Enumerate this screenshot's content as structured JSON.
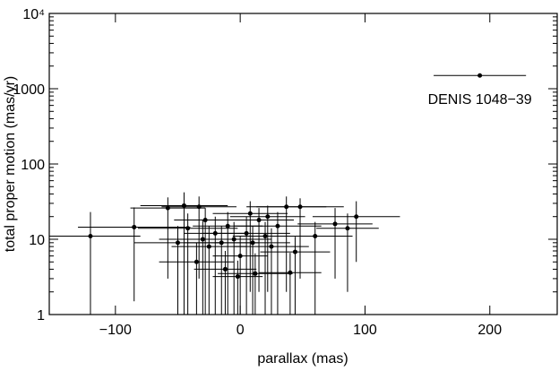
{
  "chart_data": {
    "type": "scatter",
    "xlabel": "parallax (mas)",
    "ylabel": "total proper motion (mas/yr)",
    "xlim": [
      -153,
      254
    ],
    "ylim": [
      1,
      10000
    ],
    "yscale": "log",
    "xticks": [
      {
        "value": -100,
        "label": "−100"
      },
      0,
      100,
      200
    ],
    "yticks": [
      1,
      10,
      100,
      1000,
      {
        "value": 10000,
        "label": "10⁴"
      }
    ],
    "color": "#000000",
    "series": [
      {
        "x": [
          -120,
          -85,
          -58,
          -45,
          -33,
          37,
          48,
          76,
          93,
          86,
          60,
          44,
          40,
          -42,
          -30,
          -25,
          -20,
          -15,
          -10,
          -5,
          0,
          5,
          10,
          15,
          20,
          25,
          30,
          -35,
          -12,
          12,
          22,
          -28,
          -50,
          8,
          -2
        ],
        "values": [
          11,
          14.5,
          26,
          28,
          27,
          27,
          27,
          16,
          20,
          14,
          11,
          6.8,
          3.6,
          14,
          10,
          8,
          12,
          9,
          15,
          10,
          6,
          12,
          9,
          18,
          11,
          8,
          15,
          5,
          4,
          3.5,
          20,
          18,
          9,
          22,
          3.2
        ],
        "xerr": [
          40,
          45,
          30,
          35,
          30,
          32,
          35,
          30,
          35,
          25,
          30,
          28,
          25,
          40,
          35,
          30,
          25,
          30,
          28,
          30,
          22,
          35,
          30,
          28,
          26,
          30,
          35,
          30,
          25,
          30,
          30,
          25,
          35,
          30,
          20
        ],
        "yerr_minus": [
          10,
          13,
          23,
          27,
          24,
          25,
          24,
          13,
          15,
          12,
          10,
          6,
          3,
          13,
          9,
          7.5,
          11.5,
          8.8,
          14,
          9.5,
          5.8,
          11,
          8.5,
          16,
          10.5,
          7.5,
          14,
          4.8,
          3.8,
          3.3,
          18,
          17,
          8,
          20,
          3
        ],
        "yerr_plus": [
          12,
          12,
          10,
          14,
          10,
          10,
          8,
          10,
          12,
          8,
          6,
          4,
          3,
          8,
          8,
          7,
          8,
          6,
          8,
          7,
          5,
          8,
          6,
          8,
          6,
          6,
          8,
          4,
          3,
          3,
          8,
          8,
          6,
          10,
          2
        ]
      }
    ],
    "annotations": [
      {
        "text": "DENIS 1048−39",
        "x": 192,
        "y": 1500,
        "xerr": 37
      }
    ]
  }
}
